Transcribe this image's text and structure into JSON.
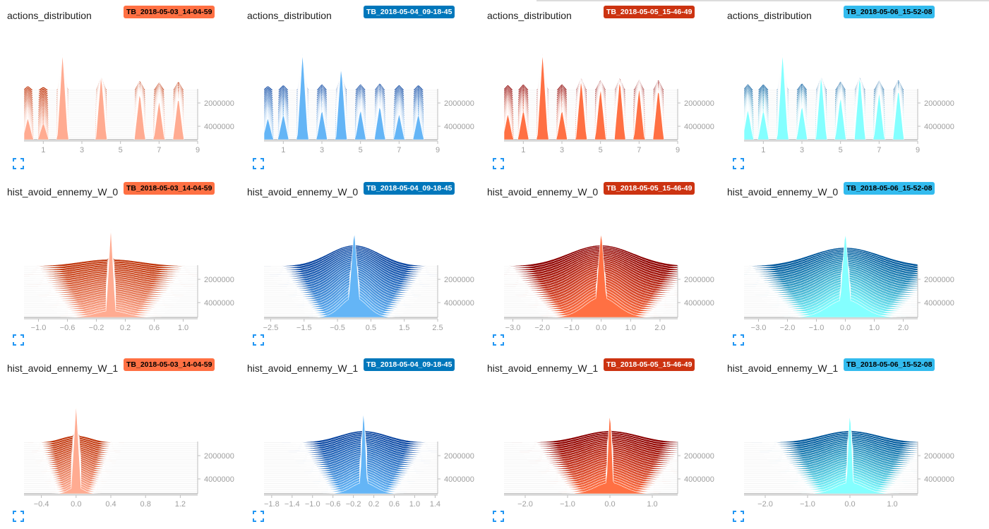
{
  "runs": [
    {
      "name": "TB_2018-05-03_14-04-59",
      "color": "#ff7043",
      "text": "#000000",
      "light": "#ffab91",
      "dark": "#bf360c"
    },
    {
      "name": "TB_2018-05-04_09-18-45",
      "color": "#0077bb",
      "text": "#ffffff",
      "light": "#64b5f6",
      "dark": "#0d47a1"
    },
    {
      "name": "TB_2018-05-05_15-46-49",
      "color": "#cc3311",
      "text": "#ffffff",
      "light": "#ff7043",
      "dark": "#8b0000"
    },
    {
      "name": "TB_2018-05-06_15-52-08",
      "color": "#33bbee",
      "text": "#000000",
      "light": "#84ffff",
      "dark": "#01579b"
    }
  ],
  "tags": [
    "actions_distribution",
    "hist_avoid_ennemy_W_0",
    "hist_avoid_ennemy_W_1"
  ],
  "icons": {
    "expand": "fullscreen-expand-icon"
  },
  "chart_data": [
    {
      "type": "area",
      "title": "actions_distribution",
      "run": "TB_2018-05-03_14-04-59",
      "kind": "actions",
      "x_ticks": [
        1,
        3,
        5,
        7,
        9
      ],
      "xlim": [
        0,
        9
      ],
      "y_ticks": [
        2000000,
        4000000
      ],
      "peaks": [
        {
          "x": 0.2,
          "h": 0.25
        },
        {
          "x": 1.0,
          "h": 0.2
        },
        {
          "x": 2.0,
          "h": 1.0
        },
        {
          "x": 4.0,
          "h": 0.75
        },
        {
          "x": 6.0,
          "h": 0.55
        },
        {
          "x": 7.0,
          "h": 0.45
        },
        {
          "x": 8.0,
          "h": 0.5
        }
      ]
    },
    {
      "type": "area",
      "title": "actions_distribution",
      "run": "TB_2018-05-04_09-18-45",
      "kind": "actions",
      "x_ticks": [
        1,
        3,
        5,
        7,
        9
      ],
      "xlim": [
        0,
        9
      ],
      "y_ticks": [
        2000000,
        4000000
      ],
      "peaks": [
        {
          "x": 0.2,
          "h": 0.25
        },
        {
          "x": 1.0,
          "h": 0.3
        },
        {
          "x": 2.0,
          "h": 1.0
        },
        {
          "x": 3.0,
          "h": 0.35
        },
        {
          "x": 4.0,
          "h": 0.85
        },
        {
          "x": 5.0,
          "h": 0.35
        },
        {
          "x": 6.0,
          "h": 0.4
        },
        {
          "x": 7.0,
          "h": 0.3
        },
        {
          "x": 8.0,
          "h": 0.3
        }
      ]
    },
    {
      "type": "area",
      "title": "actions_distribution",
      "run": "TB_2018-05-05_15-46-49",
      "kind": "actions",
      "x_ticks": [
        1,
        3,
        5,
        7,
        9
      ],
      "xlim": [
        0,
        9
      ],
      "y_ticks": [
        2000000,
        4000000
      ],
      "peaks": [
        {
          "x": 0.2,
          "h": 0.3
        },
        {
          "x": 1.0,
          "h": 0.35
        },
        {
          "x": 2.0,
          "h": 1.0
        },
        {
          "x": 3.0,
          "h": 0.35
        },
        {
          "x": 4.0,
          "h": 0.7
        },
        {
          "x": 5.0,
          "h": 0.6
        },
        {
          "x": 6.0,
          "h": 0.7
        },
        {
          "x": 7.0,
          "h": 0.6
        },
        {
          "x": 8.0,
          "h": 0.6
        }
      ]
    },
    {
      "type": "area",
      "title": "actions_distribution",
      "run": "TB_2018-05-06_15-52-08",
      "kind": "actions",
      "x_ticks": [
        1,
        3,
        5,
        7,
        9
      ],
      "xlim": [
        0,
        9
      ],
      "y_ticks": [
        2000000,
        4000000
      ],
      "peaks": [
        {
          "x": 0.2,
          "h": 0.35
        },
        {
          "x": 1.0,
          "h": 0.35
        },
        {
          "x": 2.0,
          "h": 1.0
        },
        {
          "x": 3.0,
          "h": 0.4
        },
        {
          "x": 4.0,
          "h": 0.75
        },
        {
          "x": 5.0,
          "h": 0.5
        },
        {
          "x": 6.0,
          "h": 0.75
        },
        {
          "x": 7.0,
          "h": 0.55
        },
        {
          "x": 8.0,
          "h": 0.6
        }
      ]
    },
    {
      "type": "area",
      "title": "hist_avoid_ennemy_W_0",
      "run": "TB_2018-05-03_14-04-59",
      "kind": "spike",
      "x_ticks": [
        -1.0,
        -0.6,
        -0.2,
        0.2,
        0.6,
        1.0
      ],
      "xlim": [
        -1.2,
        1.2
      ],
      "y_ticks": [
        2000000,
        4000000
      ],
      "center": 0.0,
      "spike_width": 0.07,
      "spread": 0.5,
      "spread_height": 0.15
    },
    {
      "type": "area",
      "title": "hist_avoid_ennemy_W_0",
      "run": "TB_2018-05-04_09-18-45",
      "kind": "spike",
      "x_ticks": [
        -2.5,
        -1.5,
        -0.5,
        0.5,
        1.5,
        2.5
      ],
      "xlim": [
        -2.7,
        2.5
      ],
      "y_ticks": [
        2000000,
        4000000
      ],
      "center": 0.0,
      "spike_width": 0.2,
      "spread": 0.9,
      "spread_height": 0.45
    },
    {
      "type": "area",
      "title": "hist_avoid_ennemy_W_0",
      "run": "TB_2018-05-05_15-46-49",
      "kind": "spike",
      "x_ticks": [
        -3.0,
        -2.0,
        -1.0,
        0.0,
        1.0,
        2.0
      ],
      "xlim": [
        -3.3,
        2.6
      ],
      "y_ticks": [
        2000000,
        4000000
      ],
      "center": 0.0,
      "spike_width": 0.22,
      "spread": 1.3,
      "spread_height": 0.45
    },
    {
      "type": "area",
      "title": "hist_avoid_ennemy_W_0",
      "run": "TB_2018-05-06_15-52-08",
      "kind": "spike",
      "x_ticks": [
        -3.0,
        -2.0,
        -1.0,
        0.0,
        1.0,
        2.0
      ],
      "xlim": [
        -3.5,
        2.5
      ],
      "y_ticks": [
        2000000,
        4000000
      ],
      "center": 0.0,
      "spike_width": 0.22,
      "spread": 1.4,
      "spread_height": 0.4
    },
    {
      "type": "area",
      "title": "hist_avoid_ennemy_W_1",
      "run": "TB_2018-05-03_14-04-59",
      "kind": "spike",
      "x_ticks": [
        -0.4,
        0.0,
        0.4,
        0.8,
        1.2
      ],
      "xlim": [
        -0.6,
        1.4
      ],
      "y_ticks": [
        2000000,
        4000000
      ],
      "center": 0.0,
      "spike_width": 0.06,
      "spread": 0.2,
      "spread_height": 0.15
    },
    {
      "type": "area",
      "title": "hist_avoid_ennemy_W_1",
      "run": "TB_2018-05-04_09-18-45",
      "kind": "spike",
      "x_ticks": [
        -1.8,
        -1.4,
        -1.0,
        -0.6,
        -0.2,
        0.2,
        0.6,
        1.0,
        1.4
      ],
      "xlim": [
        -1.95,
        1.45
      ],
      "y_ticks": [
        2000000,
        4000000
      ],
      "center": 0.0,
      "spike_width": 0.08,
      "spread": 0.55,
      "spread_height": 0.25
    },
    {
      "type": "area",
      "title": "hist_avoid_ennemy_W_1",
      "run": "TB_2018-05-05_15-46-49",
      "kind": "spike",
      "x_ticks": [
        -2.0,
        -1.0,
        0.0,
        1.0
      ],
      "xlim": [
        -2.5,
        1.6
      ],
      "y_ticks": [
        2000000,
        4000000
      ],
      "center": 0.0,
      "spike_width": 0.09,
      "spread": 0.8,
      "spread_height": 0.25
    },
    {
      "type": "area",
      "title": "hist_avoid_ennemy_W_1",
      "run": "TB_2018-05-06_15-52-08",
      "kind": "spike",
      "x_ticks": [
        -2.0,
        -1.0,
        0.0,
        1.0
      ],
      "xlim": [
        -2.5,
        1.6
      ],
      "y_ticks": [
        2000000,
        4000000
      ],
      "center": 0.0,
      "spike_width": 0.09,
      "spread": 0.8,
      "spread_height": 0.25
    }
  ]
}
